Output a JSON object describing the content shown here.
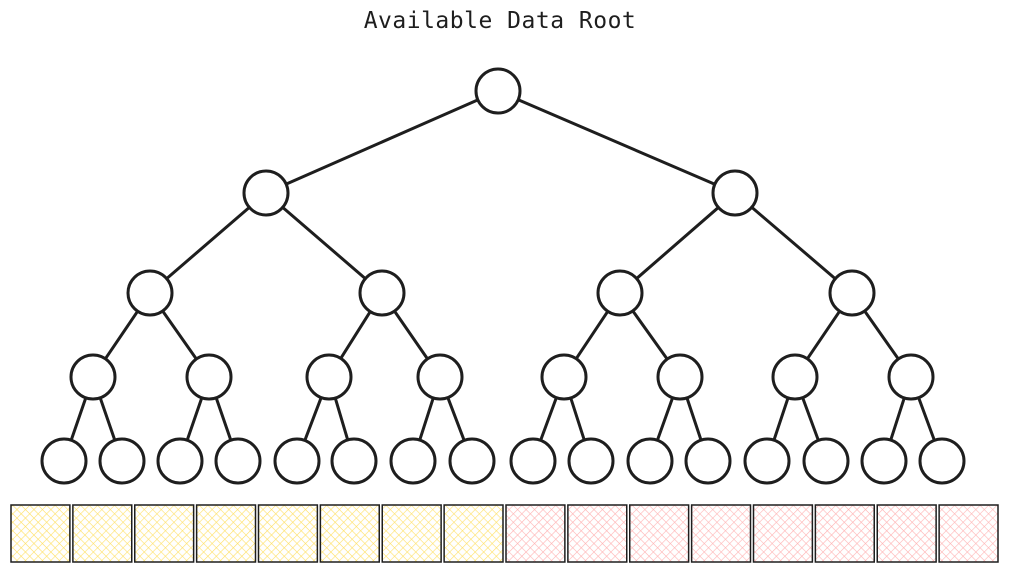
{
  "title": "Available Data Root",
  "tree": {
    "depth": 4,
    "stroke": "#1e1e1e"
  },
  "leaf_cells": {
    "colors": {
      "yellow": "#ffe58a",
      "pink": "#ffc2c2"
    },
    "cells": [
      "yellow",
      "yellow",
      "yellow",
      "yellow",
      "yellow",
      "yellow",
      "yellow",
      "yellow",
      "pink",
      "pink",
      "pink",
      "pink",
      "pink",
      "pink",
      "pink",
      "pink"
    ]
  }
}
